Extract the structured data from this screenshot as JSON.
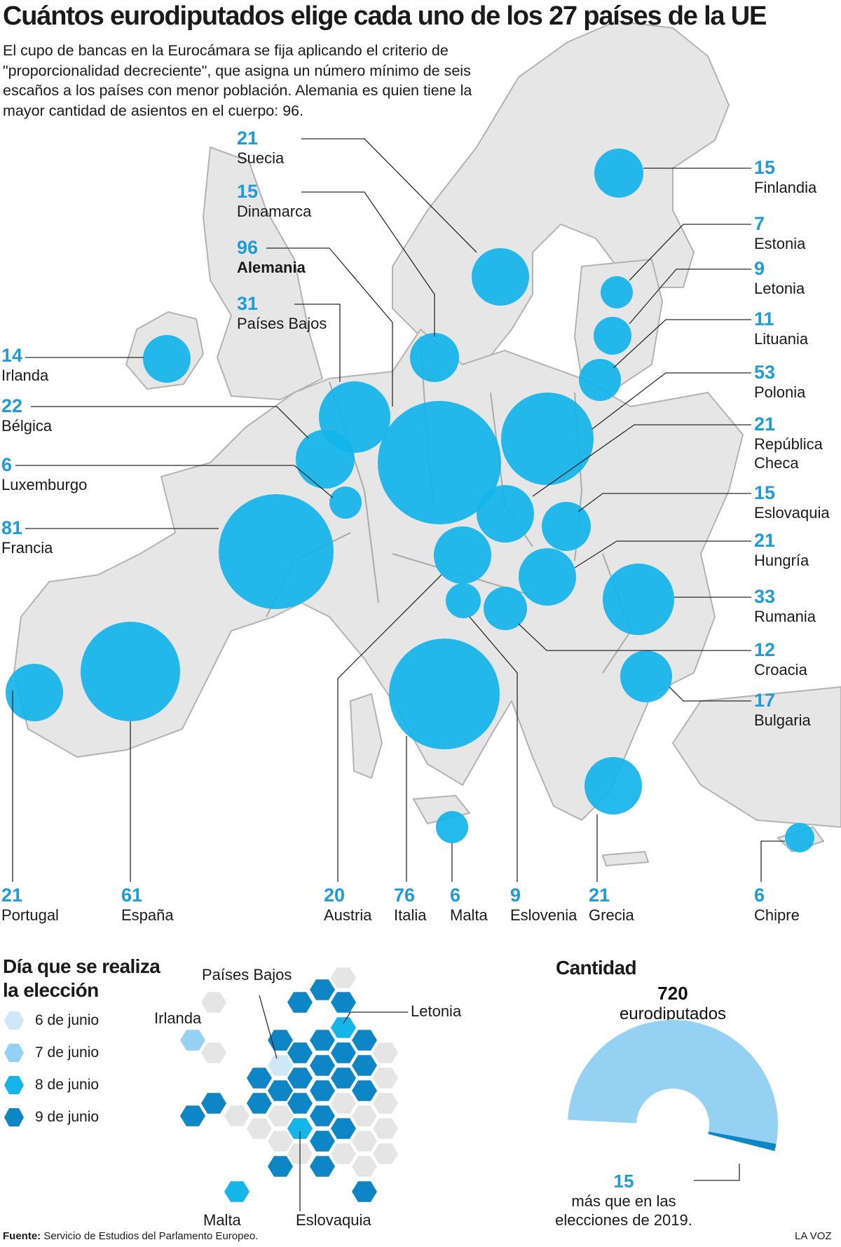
{
  "title": "Cuántos eurodiputados elige cada uno de los 27 países de la UE",
  "intro": "El cupo de bancas en la Eurocámara se fija aplicando el criterio de \"proporcionalidad decreciente\", que asigna un número mínimo de seis escaños a los países con menor población. Alemania es quien tiene la mayor cantidad de asientos en el cuerpo: 96.",
  "colors": {
    "bubble": "#14b4ea",
    "number": "#1f9bd7",
    "land": "#e6e6e6",
    "border": "#ababab",
    "june6": "#cfe8f9",
    "june7": "#95d1f3",
    "june8": "#15b5ea",
    "june9": "#0e85c4",
    "grey_hex": "#e5e5e5"
  },
  "countries": [
    {
      "name": "Suecia",
      "seats": "21"
    },
    {
      "name": "Dinamarca",
      "seats": "15"
    },
    {
      "name": "Alemania",
      "seats": "96"
    },
    {
      "name": "Países Bajos",
      "seats": "31"
    },
    {
      "name": "Irlanda",
      "seats": "14"
    },
    {
      "name": "Bélgica",
      "seats": "22"
    },
    {
      "name": "Luxemburgo",
      "seats": "6"
    },
    {
      "name": "Francia",
      "seats": "81"
    },
    {
      "name": "Finlandia",
      "seats": "15"
    },
    {
      "name": "Estonia",
      "seats": "7"
    },
    {
      "name": "Letonia",
      "seats": "9"
    },
    {
      "name": "Lituania",
      "seats": "11"
    },
    {
      "name": "Polonia",
      "seats": "53"
    },
    {
      "name": "República Checa",
      "seats": "21"
    },
    {
      "name": "Eslovaquia",
      "seats": "15"
    },
    {
      "name": "Hungría",
      "seats": "21"
    },
    {
      "name": "Rumania",
      "seats": "33"
    },
    {
      "name": "Croacia",
      "seats": "12"
    },
    {
      "name": "Bulgaria",
      "seats": "17"
    },
    {
      "name": "Portugal",
      "seats": "21"
    },
    {
      "name": "España",
      "seats": "61"
    },
    {
      "name": "Austria",
      "seats": "20"
    },
    {
      "name": "Italia",
      "seats": "76"
    },
    {
      "name": "Malta",
      "seats": "6"
    },
    {
      "name": "Eslovenia",
      "seats": "9"
    },
    {
      "name": "Grecia",
      "seats": "21"
    },
    {
      "name": "Chipre",
      "seats": "6"
    }
  ],
  "election": {
    "title_line1": "Día que se realiza",
    "title_line2": "la elección",
    "legend": [
      {
        "label": "6 de junio",
        "color": "#cfe8f9"
      },
      {
        "label": "7 de junio",
        "color": "#95d1f3"
      },
      {
        "label": "8 de junio",
        "color": "#15b5ea"
      },
      {
        "label": "9 de junio",
        "color": "#0e85c4"
      }
    ],
    "labels": {
      "paises_bajos": "Países Bajos",
      "irlanda": "Irlanda",
      "letonia": "Letonia",
      "malta": "Malta",
      "eslovaquia": "Eslovaquia"
    }
  },
  "quantity": {
    "title": "Cantidad",
    "total": "720",
    "total_label": "eurodiputados",
    "increase": "15",
    "increase_label_line1": "más que en las",
    "increase_label_line2": "elecciones de 2019.",
    "increase_fraction": 0.0208
  },
  "source": {
    "label": "Fuente:",
    "text": "Servicio de Estudios del Parlamento Europeo."
  },
  "brand": "LA VOZ"
}
